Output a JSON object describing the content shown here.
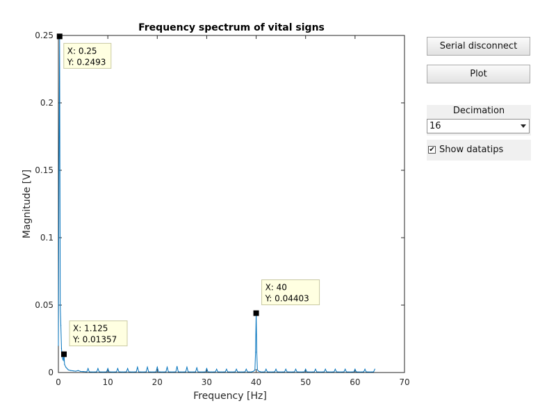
{
  "chart_data": {
    "type": "line",
    "title": "Frequency spectrum of vital signs",
    "xlabel": "Frequency [Hz]",
    "ylabel": "Magnitude [V]",
    "xlim": [
      0,
      70
    ],
    "ylim": [
      0,
      0.25
    ],
    "xticks": [
      "0",
      "10",
      "20",
      "30",
      "40",
      "50",
      "60",
      "70"
    ],
    "yticks": [
      "0",
      "0.05",
      "0.1",
      "0.15",
      "0.2",
      "0.25"
    ],
    "grid": false,
    "line_color": "#0072bd",
    "x": [
      0,
      0.125,
      0.25,
      0.375,
      0.5,
      0.625,
      0.75,
      0.875,
      1.0,
      1.125,
      1.25,
      1.5,
      1.75,
      2.0,
      2.5,
      3.0,
      3.5,
      4.0,
      4.5,
      5.0,
      5.75,
      6.0,
      6.25,
      7.0,
      7.75,
      8.0,
      8.25,
      9.0,
      9.75,
      10.0,
      10.25,
      11.0,
      11.75,
      12.0,
      12.25,
      13.0,
      13.75,
      14.0,
      14.25,
      15.0,
      15.75,
      16.0,
      16.25,
      17.0,
      17.75,
      18.0,
      18.25,
      19.0,
      19.75,
      20.0,
      20.25,
      21.0,
      21.75,
      22.0,
      22.25,
      23.0,
      23.75,
      24.0,
      24.25,
      25.0,
      25.75,
      26.0,
      26.25,
      27.0,
      27.75,
      28.0,
      28.25,
      29.0,
      29.75,
      30.0,
      30.25,
      31.0,
      31.75,
      32.0,
      32.25,
      33.0,
      33.75,
      34.0,
      34.25,
      35.0,
      35.75,
      36.0,
      36.25,
      37.0,
      37.75,
      38.0,
      38.25,
      39.0,
      39.5,
      39.75,
      39.875,
      40.0,
      40.125,
      40.25,
      40.5,
      41.0,
      41.75,
      42.0,
      42.25,
      43.0,
      43.75,
      44.0,
      44.25,
      45.0,
      45.75,
      46.0,
      46.25,
      47.0,
      47.75,
      48.0,
      48.25,
      49.0,
      49.75,
      50.0,
      50.25,
      51.0,
      51.75,
      52.0,
      52.25,
      53.0,
      53.75,
      54.0,
      54.25,
      55.0,
      55.75,
      56.0,
      56.25,
      57.0,
      57.75,
      58.0,
      58.25,
      59.0,
      59.75,
      60.0,
      60.25,
      61.0,
      61.75,
      62.0,
      62.25,
      63.0,
      63.75,
      64.0
    ],
    "y": [
      0.02,
      0.15,
      0.2493,
      0.05,
      0.035,
      0.018,
      0.012,
      0.01,
      0.009,
      0.01357,
      0.006,
      0.004,
      0.003,
      0.002,
      0.0015,
      0.0012,
      0.001,
      0.0015,
      0.0008,
      0.0007,
      0.0005,
      0.003,
      0.0005,
      0.0004,
      0.0005,
      0.003,
      0.0005,
      0.0004,
      0.0005,
      0.003,
      0.0005,
      0.0004,
      0.0005,
      0.003,
      0.0005,
      0.0004,
      0.0005,
      0.003,
      0.0005,
      0.0004,
      0.0005,
      0.004,
      0.0005,
      0.0004,
      0.0005,
      0.004,
      0.0005,
      0.0004,
      0.0005,
      0.004,
      0.0005,
      0.0004,
      0.0005,
      0.004,
      0.0005,
      0.0004,
      0.0005,
      0.0045,
      0.0005,
      0.0004,
      0.0005,
      0.004,
      0.0005,
      0.0004,
      0.0005,
      0.0035,
      0.0005,
      0.0004,
      0.0005,
      0.003,
      0.0005,
      0.0004,
      0.0005,
      0.0025,
      0.0005,
      0.0004,
      0.0005,
      0.0025,
      0.0005,
      0.0004,
      0.0005,
      0.0025,
      0.0005,
      0.0004,
      0.0005,
      0.0025,
      0.0005,
      0.0004,
      0.001,
      0.002,
      0.015,
      0.04403,
      0.015,
      0.002,
      0.001,
      0.0004,
      0.0005,
      0.0025,
      0.0005,
      0.0004,
      0.0005,
      0.0025,
      0.0005,
      0.0004,
      0.0005,
      0.0025,
      0.0005,
      0.0004,
      0.0005,
      0.0025,
      0.0005,
      0.0004,
      0.0005,
      0.0025,
      0.0005,
      0.0004,
      0.0005,
      0.0025,
      0.0005,
      0.0004,
      0.0005,
      0.0025,
      0.0005,
      0.0004,
      0.0005,
      0.0025,
      0.0005,
      0.0004,
      0.0005,
      0.0025,
      0.0005,
      0.0004,
      0.0005,
      0.0025,
      0.0005,
      0.0004,
      0.0005,
      0.0025,
      0.0005,
      0.0004,
      0.0005,
      0.0025
    ],
    "datatips": [
      {
        "x": 0.25,
        "y": 0.2493,
        "x_text": "X: 0.25",
        "y_text": "Y: 0.2493",
        "placement": "below-right"
      },
      {
        "x": 1.125,
        "y": 0.01357,
        "x_text": "X: 1.125",
        "y_text": "Y: 0.01357",
        "placement": "above-right"
      },
      {
        "x": 40,
        "y": 0.04403,
        "x_text": "X: 40",
        "y_text": "Y: 0.04403",
        "placement": "above-right"
      }
    ]
  },
  "controls": {
    "serial_button": "Serial disconnect",
    "plot_button": "Plot",
    "decimation_label": "Decimation",
    "decimation_value": "16",
    "show_datatips_label": "Show datatips",
    "show_datatips_checked": true
  },
  "icons": {
    "dropdown": "chevron-down-icon",
    "checkbox": "checkmark-icon"
  }
}
